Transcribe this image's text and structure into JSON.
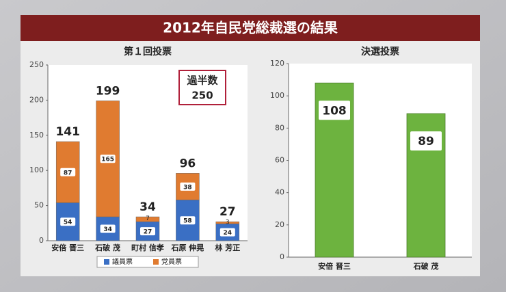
{
  "title": "2012年自民党総裁選の結果",
  "chart_data": [
    {
      "type": "bar",
      "title": "第１回投票",
      "stacked": true,
      "categories": [
        "安倍 晋三",
        "石破 茂",
        "町村 信孝",
        "石原 伸晃",
        "林 芳正"
      ],
      "series": [
        {
          "name": "議員票",
          "color": "#3a6fc4",
          "values": [
            54,
            34,
            27,
            58,
            24
          ]
        },
        {
          "name": "党員票",
          "color": "#e07b30",
          "values": [
            87,
            165,
            7,
            38,
            3
          ]
        }
      ],
      "totals": [
        141,
        199,
        34,
        96,
        27
      ],
      "annotation": {
        "label": "過半数",
        "value": 250
      },
      "ylim": [
        0,
        250
      ],
      "yticks": [
        0,
        50,
        100,
        150,
        200,
        250
      ],
      "legend": "bottom"
    },
    {
      "type": "bar",
      "title": "決選投票",
      "categories": [
        "安倍 晋三",
        "石破 茂"
      ],
      "values": [
        108,
        89
      ],
      "color": "#6db33f",
      "ylim": [
        0,
        120
      ],
      "yticks": [
        0,
        20,
        40,
        60,
        80,
        100,
        120
      ]
    }
  ]
}
